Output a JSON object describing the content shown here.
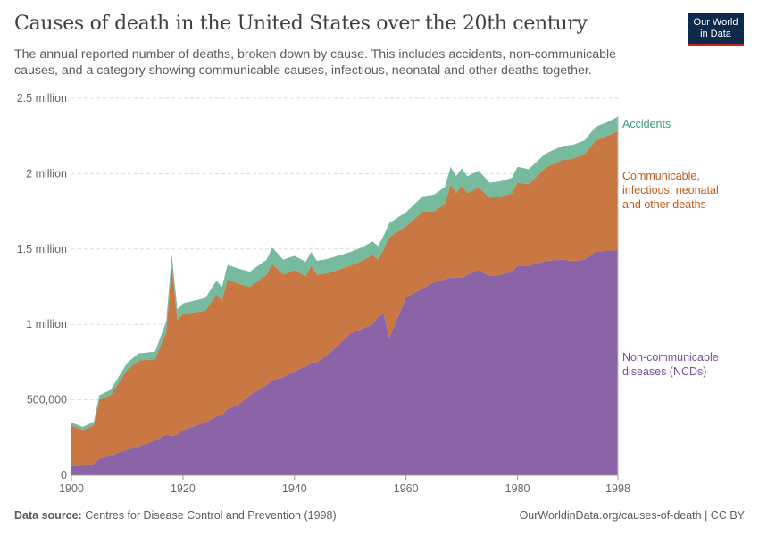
{
  "header": {
    "title": "Causes of death in the United States over the 20th century",
    "subtitle": "The annual reported number of deaths, broken down by cause. This includes accidents, non-communicable causes, and a category showing communicable causes, infectious, neonatal and other deaths together.",
    "logo_line1": "Our World",
    "logo_line2": "in Data"
  },
  "footer": {
    "source_label": "Data source:",
    "source": "Centres for Disease Control and Prevention (1998)",
    "url": "OurWorldinData.org/causes-of-death | CC BY"
  },
  "chart_data": {
    "type": "area",
    "stacked": true,
    "ylim": [
      0,
      2500000
    ],
    "xlim": [
      1900,
      1998
    ],
    "grid": "horizontal dashed",
    "ytick_labels": [
      "0",
      "500,000",
      "1 million",
      "1.5 million",
      "2 million",
      "2.5 million"
    ],
    "ytick_values": [
      0,
      500000,
      1000000,
      1500000,
      2000000,
      2500000
    ],
    "xtick_labels": [
      "1900",
      "1920",
      "1940",
      "1960",
      "1980",
      "1998"
    ],
    "legend_placement": "right (inline labels)",
    "x": [
      1900,
      1902,
      1904,
      1905,
      1907,
      1910,
      1912,
      1915,
      1917,
      1918,
      1919,
      1920,
      1924,
      1926,
      1927,
      1928,
      1930,
      1932,
      1935,
      1936,
      1938,
      1940,
      1942,
      1943,
      1944,
      1946,
      1950,
      1952,
      1954,
      1955,
      1956,
      1957,
      1960,
      1963,
      1965,
      1967,
      1968,
      1969,
      1970,
      1971,
      1973,
      1975,
      1977,
      1979,
      1980,
      1982,
      1985,
      1988,
      1990,
      1992,
      1994,
      1996,
      1998
    ],
    "series": [
      {
        "name": "Non-communicable diseases (NCDs)",
        "color": "#8a64a6",
        "label_color": "#7b4d9e",
        "values": [
          60000,
          65000,
          75000,
          110000,
          130000,
          170000,
          190000,
          230000,
          270000,
          260000,
          270000,
          300000,
          350000,
          390000,
          400000,
          440000,
          470000,
          530000,
          600000,
          630000,
          650000,
          690000,
          720000,
          750000,
          750000,
          800000,
          940000,
          970000,
          1000000,
          1050000,
          1070000,
          910000,
          1180000,
          1240000,
          1280000,
          1300000,
          1310000,
          1310000,
          1310000,
          1330000,
          1360000,
          1320000,
          1330000,
          1350000,
          1390000,
          1390000,
          1420000,
          1430000,
          1420000,
          1430000,
          1480000,
          1490000,
          1490000
        ]
      },
      {
        "name": "Communicable, infectious, neonatal and other deaths",
        "color": "#c97843",
        "label_color": "#c05a1c",
        "values": [
          270000,
          235000,
          255000,
          390000,
          400000,
          530000,
          570000,
          540000,
          680000,
          1130000,
          760000,
          770000,
          740000,
          810000,
          760000,
          860000,
          800000,
          720000,
          730000,
          770000,
          680000,
          670000,
          600000,
          640000,
          580000,
          540000,
          450000,
          450000,
          460000,
          380000,
          430000,
          670000,
          470000,
          510000,
          470000,
          500000,
          620000,
          560000,
          610000,
          540000,
          550000,
          520000,
          520000,
          520000,
          550000,
          540000,
          620000,
          660000,
          680000,
          700000,
          740000,
          760000,
          790000
        ]
      },
      {
        "name": "Accidents",
        "color": "#76bb9e",
        "label_color": "#3c9a72",
        "values": [
          20000,
          20000,
          25000,
          30000,
          35000,
          45000,
          48000,
          50000,
          70000,
          70000,
          70000,
          70000,
          85000,
          90000,
          90000,
          95000,
          100000,
          100000,
          100000,
          110000,
          100000,
          95000,
          95000,
          90000,
          92000,
          95000,
          90000,
          90000,
          90000,
          90000,
          90000,
          92000,
          95000,
          100000,
          110000,
          113000,
          115000,
          115000,
          115000,
          113000,
          110000,
          100000,
          100000,
          103000,
          105000,
          100000,
          93000,
          93000,
          92000,
          90000,
          90000,
          90000,
          97000
        ]
      }
    ]
  }
}
